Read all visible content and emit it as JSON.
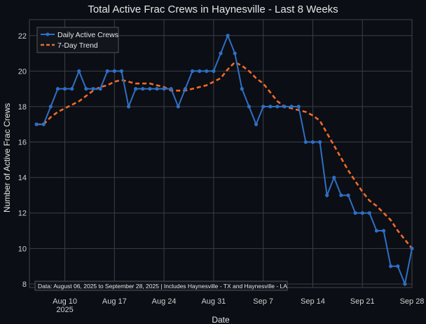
{
  "chart_data": {
    "type": "line",
    "title": "Total Active Frac Crews in Haynesville - Last 8 Weeks",
    "xlabel": "Date",
    "ylabel": "Number of Active Frac Crews",
    "x_start": "2025-08-06",
    "x_end": "2025-09-28",
    "xlim": [
      "2025-08-05",
      "2025-09-28"
    ],
    "ylim": [
      7.8,
      22.9
    ],
    "y_ticks": [
      8,
      10,
      12,
      14,
      16,
      18,
      20,
      22
    ],
    "x_ticks": [
      {
        "date": "2025-08-10",
        "label": "Aug 10",
        "sublabel": "2025"
      },
      {
        "date": "2025-08-17",
        "label": "Aug 17",
        "sublabel": ""
      },
      {
        "date": "2025-08-24",
        "label": "Aug 24",
        "sublabel": ""
      },
      {
        "date": "2025-08-31",
        "label": "Aug 31",
        "sublabel": ""
      },
      {
        "date": "2025-09-07",
        "label": "Sep 7",
        "sublabel": ""
      },
      {
        "date": "2025-09-14",
        "label": "Sep 14",
        "sublabel": ""
      },
      {
        "date": "2025-09-21",
        "label": "Sep 21",
        "sublabel": ""
      },
      {
        "date": "2025-09-28",
        "label": "Sep 28",
        "sublabel": ""
      }
    ],
    "legend_position": "top-left",
    "annotation": "Data: August 06, 2025 to September 28, 2025 | Includes Haynesville - TX and Haynesville - LA",
    "series": [
      {
        "name": "Daily Active Crews",
        "style": "line+markers",
        "color": "#2f6fc4",
        "values": [
          17,
          17,
          18,
          19,
          19,
          19,
          20,
          19,
          19,
          19,
          20,
          20,
          20,
          18,
          19,
          19,
          19,
          19,
          19,
          19,
          18,
          19,
          20,
          20,
          20,
          20,
          21,
          22,
          21,
          19,
          18,
          17,
          18,
          18,
          18,
          18,
          18,
          18,
          16,
          16,
          16,
          13,
          14,
          13,
          13,
          12,
          12,
          12,
          11,
          11,
          9,
          9,
          8,
          10
        ]
      },
      {
        "name": "7-Day Trend",
        "style": "dashed",
        "color": "#ef6a2a",
        "values": [
          17,
          17,
          17.4,
          17.7,
          17.9,
          18.1,
          18.3,
          18.6,
          18.9,
          19.1,
          19.2,
          19.4,
          19.5,
          19.4,
          19.3,
          19.3,
          19.3,
          19.2,
          19.1,
          18.9,
          18.9,
          18.9,
          19,
          19.1,
          19.2,
          19.4,
          19.6,
          20.1,
          20.5,
          20.3,
          20,
          19.6,
          19.3,
          18.8,
          18.3,
          18,
          17.9,
          17.8,
          17.7,
          17.5,
          17.2,
          16.5,
          15.8,
          15.1,
          14.4,
          13.8,
          13.2,
          12.7,
          12.4,
          12,
          11.6,
          11,
          10.5,
          10
        ]
      }
    ]
  }
}
